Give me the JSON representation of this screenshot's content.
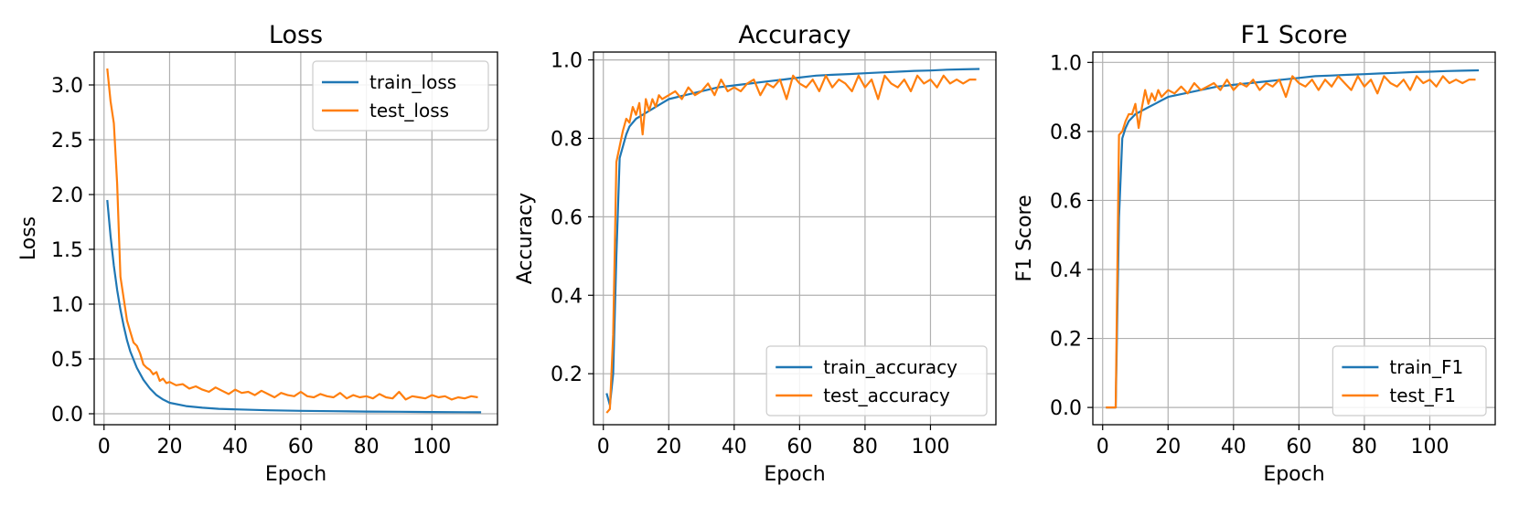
{
  "chart_data": [
    {
      "type": "line",
      "title": "Loss",
      "xlabel": "Epoch",
      "ylabel": "Loss",
      "xlim": [
        -3,
        120
      ],
      "ylim": [
        -0.1,
        3.3
      ],
      "xticks": [
        0,
        20,
        40,
        60,
        80,
        100
      ],
      "xtick_labels": [
        "0",
        "20",
        "40",
        "60",
        "80",
        "100"
      ],
      "yticks": [
        0.0,
        0.5,
        1.0,
        1.5,
        2.0,
        2.5,
        3.0
      ],
      "ytick_labels": [
        "0.0",
        "0.5",
        "1.0",
        "1.5",
        "2.0",
        "2.5",
        "3.0"
      ],
      "grid": true,
      "legend_position": "upper-right",
      "series": [
        {
          "name": "train_loss",
          "color": "#1f77b4",
          "x": [
            1,
            2,
            3,
            4,
            5,
            6,
            7,
            8,
            10,
            12,
            14,
            16,
            18,
            20,
            25,
            30,
            35,
            40,
            50,
            60,
            70,
            80,
            90,
            100,
            110,
            115
          ],
          "values": [
            1.95,
            1.62,
            1.35,
            1.13,
            0.95,
            0.8,
            0.67,
            0.57,
            0.42,
            0.31,
            0.23,
            0.17,
            0.13,
            0.1,
            0.07,
            0.055,
            0.045,
            0.04,
            0.032,
            0.027,
            0.023,
            0.02,
            0.018,
            0.016,
            0.014,
            0.013
          ]
        },
        {
          "name": "test_loss",
          "color": "#ff7f0e",
          "x": [
            1,
            2,
            3,
            4,
            5,
            6,
            7,
            8,
            9,
            10,
            11,
            12,
            13,
            14,
            15,
            16,
            17,
            18,
            19,
            20,
            22,
            24,
            26,
            28,
            30,
            32,
            34,
            36,
            38,
            40,
            42,
            44,
            46,
            48,
            50,
            52,
            54,
            56,
            58,
            60,
            62,
            64,
            66,
            68,
            70,
            72,
            74,
            76,
            78,
            80,
            82,
            84,
            86,
            88,
            90,
            92,
            94,
            96,
            98,
            100,
            102,
            104,
            106,
            108,
            110,
            112,
            114
          ],
          "values": [
            3.15,
            2.85,
            2.65,
            2.1,
            1.25,
            1.05,
            0.85,
            0.75,
            0.65,
            0.62,
            0.55,
            0.45,
            0.42,
            0.4,
            0.36,
            0.38,
            0.3,
            0.32,
            0.28,
            0.29,
            0.26,
            0.27,
            0.23,
            0.25,
            0.22,
            0.2,
            0.24,
            0.21,
            0.18,
            0.22,
            0.19,
            0.2,
            0.17,
            0.21,
            0.18,
            0.15,
            0.19,
            0.17,
            0.16,
            0.2,
            0.16,
            0.15,
            0.18,
            0.16,
            0.15,
            0.19,
            0.14,
            0.17,
            0.15,
            0.16,
            0.14,
            0.18,
            0.15,
            0.14,
            0.2,
            0.13,
            0.16,
            0.15,
            0.14,
            0.17,
            0.15,
            0.16,
            0.13,
            0.15,
            0.14,
            0.16,
            0.15
          ]
        }
      ]
    },
    {
      "type": "line",
      "title": "Accuracy",
      "xlabel": "Epoch",
      "ylabel": "Accuracy",
      "xlim": [
        -3,
        120
      ],
      "ylim": [
        0.07,
        1.02
      ],
      "xticks": [
        0,
        20,
        40,
        60,
        80,
        100
      ],
      "xtick_labels": [
        "0",
        "20",
        "40",
        "60",
        "80",
        "100"
      ],
      "yticks": [
        0.2,
        0.4,
        0.6,
        0.8,
        1.0
      ],
      "ytick_labels": [
        "0.2",
        "0.4",
        "0.6",
        "0.8",
        "1.0"
      ],
      "grid": true,
      "legend_position": "lower-right",
      "series": [
        {
          "name": "train_accuracy",
          "color": "#1f77b4",
          "x": [
            1,
            2,
            3,
            4,
            5,
            6,
            7,
            8,
            10,
            12,
            14,
            16,
            18,
            20,
            25,
            30,
            35,
            40,
            45,
            50,
            55,
            60,
            65,
            70,
            75,
            80,
            85,
            90,
            95,
            100,
            105,
            110,
            115
          ],
          "values": [
            0.15,
            0.12,
            0.2,
            0.5,
            0.75,
            0.78,
            0.81,
            0.83,
            0.85,
            0.86,
            0.87,
            0.88,
            0.89,
            0.9,
            0.91,
            0.92,
            0.93,
            0.935,
            0.94,
            0.945,
            0.95,
            0.955,
            0.96,
            0.962,
            0.964,
            0.966,
            0.968,
            0.97,
            0.972,
            0.973,
            0.975,
            0.976,
            0.977
          ]
        },
        {
          "name": "test_accuracy",
          "color": "#ff7f0e",
          "x": [
            1,
            2,
            3,
            4,
            5,
            6,
            7,
            8,
            9,
            10,
            11,
            12,
            13,
            14,
            15,
            16,
            17,
            18,
            20,
            22,
            24,
            26,
            28,
            30,
            32,
            34,
            36,
            38,
            40,
            42,
            44,
            46,
            48,
            50,
            52,
            54,
            56,
            58,
            60,
            62,
            64,
            66,
            68,
            70,
            72,
            74,
            76,
            78,
            80,
            82,
            84,
            86,
            88,
            90,
            92,
            94,
            96,
            98,
            100,
            102,
            104,
            106,
            108,
            110,
            112,
            114
          ],
          "values": [
            0.1,
            0.11,
            0.3,
            0.74,
            0.78,
            0.82,
            0.85,
            0.84,
            0.88,
            0.86,
            0.89,
            0.81,
            0.9,
            0.87,
            0.9,
            0.88,
            0.91,
            0.9,
            0.91,
            0.92,
            0.9,
            0.93,
            0.91,
            0.92,
            0.94,
            0.91,
            0.95,
            0.92,
            0.93,
            0.92,
            0.94,
            0.95,
            0.91,
            0.94,
            0.93,
            0.95,
            0.9,
            0.96,
            0.94,
            0.93,
            0.95,
            0.92,
            0.96,
            0.93,
            0.95,
            0.94,
            0.92,
            0.96,
            0.93,
            0.95,
            0.9,
            0.96,
            0.94,
            0.93,
            0.95,
            0.92,
            0.96,
            0.94,
            0.95,
            0.93,
            0.96,
            0.94,
            0.95,
            0.94,
            0.95,
            0.95
          ]
        }
      ]
    },
    {
      "type": "line",
      "title": "F1 Score",
      "xlabel": "Epoch",
      "ylabel": "F1 Score",
      "xlim": [
        -3,
        120
      ],
      "ylim": [
        -0.05,
        1.03
      ],
      "xticks": [
        0,
        20,
        40,
        60,
        80,
        100
      ],
      "xtick_labels": [
        "0",
        "20",
        "40",
        "60",
        "80",
        "100"
      ],
      "yticks": [
        0.0,
        0.2,
        0.4,
        0.6,
        0.8,
        1.0
      ],
      "ytick_labels": [
        "0.0",
        "0.2",
        "0.4",
        "0.6",
        "0.8",
        "1.0"
      ],
      "grid": true,
      "legend_position": "lower-right",
      "series": [
        {
          "name": "train_F1",
          "color": "#1f77b4",
          "x": [
            1,
            2,
            3,
            4,
            5,
            6,
            7,
            8,
            10,
            12,
            14,
            16,
            18,
            20,
            25,
            30,
            35,
            40,
            45,
            50,
            55,
            60,
            65,
            70,
            75,
            80,
            85,
            90,
            95,
            100,
            105,
            110,
            115
          ],
          "values": [
            0.0,
            0.0,
            0.0,
            0.0,
            0.55,
            0.78,
            0.81,
            0.83,
            0.85,
            0.86,
            0.87,
            0.88,
            0.89,
            0.9,
            0.91,
            0.92,
            0.93,
            0.935,
            0.94,
            0.945,
            0.95,
            0.955,
            0.96,
            0.962,
            0.964,
            0.966,
            0.968,
            0.97,
            0.972,
            0.973,
            0.975,
            0.976,
            0.977
          ]
        },
        {
          "name": "test_F1",
          "color": "#ff7f0e",
          "x": [
            1,
            2,
            3,
            4,
            5,
            6,
            7,
            8,
            9,
            10,
            11,
            12,
            13,
            14,
            15,
            16,
            17,
            18,
            20,
            22,
            24,
            26,
            28,
            30,
            32,
            34,
            36,
            38,
            40,
            42,
            44,
            46,
            48,
            50,
            52,
            54,
            56,
            58,
            60,
            62,
            64,
            66,
            68,
            70,
            72,
            74,
            76,
            78,
            80,
            82,
            84,
            86,
            88,
            90,
            92,
            94,
            96,
            98,
            100,
            102,
            104,
            106,
            108,
            110,
            112,
            114
          ],
          "values": [
            0.0,
            0.0,
            0.0,
            0.0,
            0.79,
            0.8,
            0.83,
            0.85,
            0.85,
            0.88,
            0.81,
            0.87,
            0.92,
            0.88,
            0.91,
            0.89,
            0.92,
            0.9,
            0.92,
            0.91,
            0.93,
            0.91,
            0.94,
            0.92,
            0.93,
            0.94,
            0.92,
            0.95,
            0.92,
            0.94,
            0.93,
            0.95,
            0.92,
            0.94,
            0.93,
            0.95,
            0.9,
            0.96,
            0.94,
            0.93,
            0.95,
            0.92,
            0.95,
            0.93,
            0.96,
            0.94,
            0.92,
            0.96,
            0.93,
            0.95,
            0.91,
            0.96,
            0.94,
            0.93,
            0.95,
            0.92,
            0.96,
            0.94,
            0.95,
            0.93,
            0.96,
            0.94,
            0.95,
            0.94,
            0.95,
            0.95
          ]
        }
      ]
    }
  ]
}
